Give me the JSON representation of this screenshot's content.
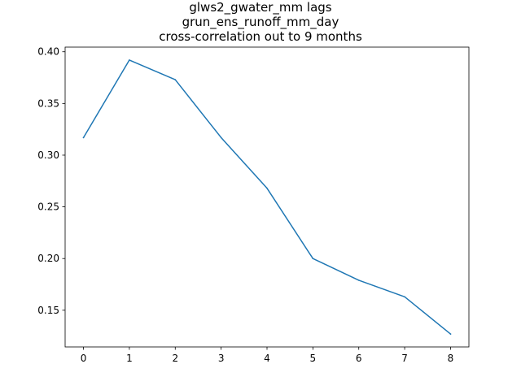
{
  "chart_data": {
    "type": "line",
    "title_lines": [
      "glws2_gwater_mm lags",
      "grun_ens_runoff_mm_day",
      "cross-correlation out to 9 months"
    ],
    "xlabel": "",
    "ylabel": "",
    "x": [
      0,
      1,
      2,
      3,
      4,
      5,
      6,
      7,
      8
    ],
    "series": [
      {
        "values": [
          0.317,
          0.392,
          0.373,
          0.317,
          0.268,
          0.2,
          0.179,
          0.163,
          0.127
        ],
        "color": "#1f77b4"
      }
    ],
    "xlim": [
      -0.4,
      8.4
    ],
    "ylim": [
      0.1145,
      0.4045
    ],
    "xticks": [
      0,
      1,
      2,
      3,
      4,
      5,
      6,
      7,
      8
    ],
    "yticks": [
      0.15,
      0.2,
      0.25,
      0.3,
      0.35,
      0.4
    ],
    "ytick_labels": [
      "0.15",
      "0.20",
      "0.25",
      "0.30",
      "0.35",
      "0.40"
    ],
    "grid": false,
    "legend": "none"
  }
}
